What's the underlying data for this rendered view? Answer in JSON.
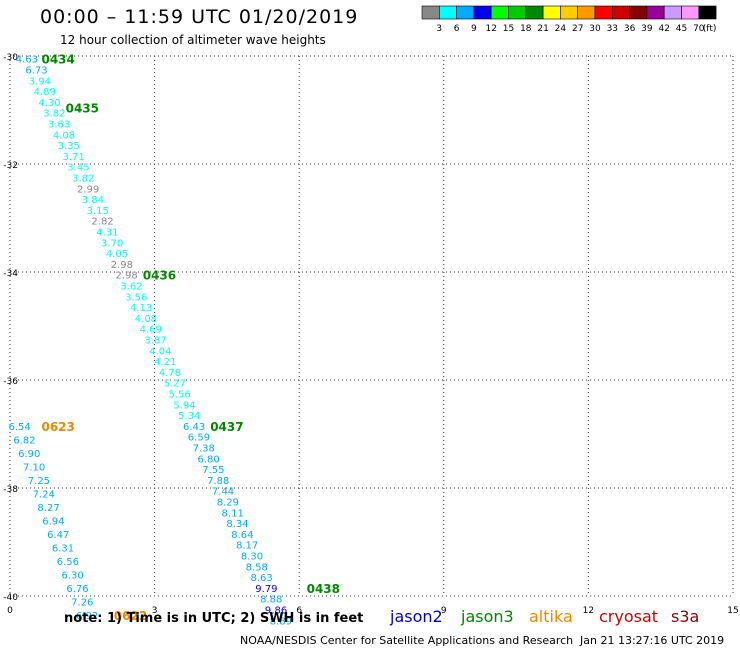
{
  "header": {
    "title": "00:00 – 11:59 UTC 01/20/2019",
    "subtitle": "12 hour collection of altimeter wave heights"
  },
  "footer": {
    "note": "note: 1) Time is in UTC; 2) SWH is in feet",
    "credit": "NOAA/NESDIS Center for Satellite Applications and Research",
    "timestamp": "Jan 21 13:27:16 UTC 2019",
    "satellites": [
      {
        "label": "jason2",
        "color": "#0000cc"
      },
      {
        "label": "jason3",
        "color": "#008800"
      },
      {
        "label": "altika",
        "color": "#ee8800"
      },
      {
        "label": "cryosat",
        "color": "#cc0000"
      },
      {
        "label": "s3a",
        "color": "#880000"
      }
    ]
  },
  "colorbar": {
    "colors": [
      "#888888",
      "#00ffff",
      "#00aaff",
      "#0000ee",
      "#00ff00",
      "#00cc00",
      "#008800",
      "#ffff00",
      "#ffcc00",
      "#ff9900",
      "#ff0000",
      "#cc0000",
      "#880000",
      "#990099",
      "#cc99ff",
      "#ff99ff",
      "#000000"
    ],
    "labels": [
      "3",
      "6",
      "9",
      "12",
      "15",
      "18",
      "21",
      "24",
      "27",
      "30",
      "33",
      "36",
      "39",
      "42",
      "45",
      "70"
    ],
    "unit": "(ft)"
  },
  "chart_data": {
    "type": "scatter",
    "xlim": [
      0,
      15
    ],
    "ylim": [
      -40,
      -30
    ],
    "x_ticks": [
      0,
      3,
      6,
      9,
      12,
      15
    ],
    "y_ticks": [
      -30,
      -32,
      -34,
      -36,
      -38,
      -40
    ],
    "grid": true,
    "tracks": [
      {
        "satellite": "jason3",
        "points": [
          {
            "x": 0.35,
            "y": -30.05,
            "v": "4.63",
            "c": "#00aaff"
          },
          {
            "x": 0.55,
            "y": -30.25,
            "v": "6.73",
            "c": "#00aaff"
          },
          {
            "x": 0.62,
            "y": -30.45,
            "v": "3.94",
            "c": "#00ffff"
          },
          {
            "x": 0.72,
            "y": -30.65,
            "v": "4.89",
            "c": "#00ffff"
          },
          {
            "x": 0.82,
            "y": -30.85,
            "v": "4.30",
            "c": "#00ffff"
          },
          {
            "x": 0.92,
            "y": -31.05,
            "v": "3.82",
            "c": "#00ffff"
          },
          {
            "x": 1.02,
            "y": -31.25,
            "v": "3.63",
            "c": "#00ffff"
          },
          {
            "x": 1.12,
            "y": -31.45,
            "v": "4.08",
            "c": "#00ffff"
          },
          {
            "x": 1.22,
            "y": -31.65,
            "v": "3.35",
            "c": "#00ffff"
          },
          {
            "x": 1.32,
            "y": -31.85,
            "v": "3.71",
            "c": "#00ffff"
          },
          {
            "x": 1.42,
            "y": -32.05,
            "v": "3.45",
            "c": "#00ffff"
          },
          {
            "x": 1.52,
            "y": -32.25,
            "v": "3.82",
            "c": "#00ffff"
          },
          {
            "x": 1.62,
            "y": -32.45,
            "v": "2.99",
            "c": "#888888"
          },
          {
            "x": 1.72,
            "y": -32.65,
            "v": "3.84",
            "c": "#00ffff"
          },
          {
            "x": 1.82,
            "y": -32.85,
            "v": "3.15",
            "c": "#00ffff"
          },
          {
            "x": 1.92,
            "y": -33.05,
            "v": "2.82",
            "c": "#888888"
          },
          {
            "x": 2.02,
            "y": -33.25,
            "v": "4.31",
            "c": "#00ffff"
          },
          {
            "x": 2.12,
            "y": -33.45,
            "v": "3.70",
            "c": "#00ffff"
          },
          {
            "x": 2.22,
            "y": -33.65,
            "v": "4.05",
            "c": "#00ffff"
          },
          {
            "x": 2.32,
            "y": -33.85,
            "v": "2.98",
            "c": "#888888"
          },
          {
            "x": 2.42,
            "y": -34.05,
            "v": "2.98",
            "c": "#888888"
          },
          {
            "x": 2.52,
            "y": -34.25,
            "v": "3.62",
            "c": "#00ffff"
          },
          {
            "x": 2.62,
            "y": -34.45,
            "v": "3.56",
            "c": "#00ffff"
          },
          {
            "x": 2.72,
            "y": -34.65,
            "v": "4.13",
            "c": "#00ffff"
          },
          {
            "x": 2.82,
            "y": -34.85,
            "v": "4.08",
            "c": "#00ffff"
          },
          {
            "x": 2.92,
            "y": -35.05,
            "v": "4.69",
            "c": "#00ffff"
          },
          {
            "x": 3.02,
            "y": -35.25,
            "v": "3.87",
            "c": "#00ffff"
          },
          {
            "x": 3.12,
            "y": -35.45,
            "v": "4.04",
            "c": "#00ffff"
          },
          {
            "x": 3.22,
            "y": -35.65,
            "v": "4.21",
            "c": "#00ffff"
          },
          {
            "x": 3.32,
            "y": -35.85,
            "v": "4.78",
            "c": "#00ffff"
          },
          {
            "x": 3.42,
            "y": -36.05,
            "v": "5.27",
            "c": "#00ffff"
          },
          {
            "x": 3.52,
            "y": -36.25,
            "v": "5.56",
            "c": "#00ffff"
          },
          {
            "x": 3.62,
            "y": -36.45,
            "v": "5.94",
            "c": "#00ffff"
          },
          {
            "x": 3.72,
            "y": -36.65,
            "v": "5.34",
            "c": "#00ffff"
          },
          {
            "x": 3.82,
            "y": -36.85,
            "v": "6.43",
            "c": "#00aaff"
          },
          {
            "x": 3.92,
            "y": -37.05,
            "v": "6.59",
            "c": "#00aaff"
          },
          {
            "x": 4.02,
            "y": -37.25,
            "v": "7.38",
            "c": "#00aaff"
          },
          {
            "x": 4.12,
            "y": -37.45,
            "v": "6.80",
            "c": "#00aaff"
          },
          {
            "x": 4.22,
            "y": -37.65,
            "v": "7.55",
            "c": "#00aaff"
          },
          {
            "x": 4.32,
            "y": -37.85,
            "v": "7.88",
            "c": "#00aaff"
          },
          {
            "x": 4.42,
            "y": -38.05,
            "v": "7.44",
            "c": "#00aaff"
          },
          {
            "x": 4.52,
            "y": -38.25,
            "v": "8.29",
            "c": "#00aaff"
          },
          {
            "x": 4.62,
            "y": -38.45,
            "v": "8.11",
            "c": "#00aaff"
          },
          {
            "x": 4.72,
            "y": -38.65,
            "v": "8.34",
            "c": "#00aaff"
          },
          {
            "x": 4.82,
            "y": -38.85,
            "v": "8.64",
            "c": "#00aaff"
          },
          {
            "x": 4.92,
            "y": -39.05,
            "v": "8.17",
            "c": "#00aaff"
          },
          {
            "x": 5.02,
            "y": -39.25,
            "v": "8.30",
            "c": "#00aaff"
          },
          {
            "x": 5.12,
            "y": -39.45,
            "v": "8.58",
            "c": "#00aaff"
          },
          {
            "x": 5.22,
            "y": -39.65,
            "v": "8.63",
            "c": "#00aaff"
          },
          {
            "x": 5.32,
            "y": -39.85,
            "v": "9.79",
            "c": "#0000ee"
          },
          {
            "x": 5.42,
            "y": -40.05,
            "v": "8.88",
            "c": "#00aaff"
          },
          {
            "x": 5.52,
            "y": -40.25,
            "v": "9.86",
            "c": "#0000ee"
          },
          {
            "x": 5.62,
            "y": -40.45,
            "v": "8.89",
            "c": "#00aaff"
          }
        ],
        "time_labels": [
          {
            "text": "0434",
            "x": 1.0,
            "y": -30.05,
            "c": "#008800"
          },
          {
            "text": "0435",
            "x": 1.5,
            "y": -30.95,
            "c": "#008800"
          },
          {
            "x": 3.1,
            "y": -34.05,
            "text": "0436",
            "c": "#008800"
          },
          {
            "x": 4.5,
            "y": -36.85,
            "text": "0437",
            "c": "#008800"
          },
          {
            "x": 6.5,
            "y": -39.85,
            "text": "0438",
            "c": "#008800"
          }
        ]
      },
      {
        "satellite": "altika",
        "points": [
          {
            "x": 0.2,
            "y": -36.85,
            "v": "6.54",
            "c": "#00aaff"
          },
          {
            "x": 0.3,
            "y": -37.1,
            "v": "6.82",
            "c": "#00aaff"
          },
          {
            "x": 0.4,
            "y": -37.35,
            "v": "6.90",
            "c": "#00aaff"
          },
          {
            "x": 0.5,
            "y": -37.6,
            "v": "7.10",
            "c": "#00aaff"
          },
          {
            "x": 0.6,
            "y": -37.85,
            "v": "7.25",
            "c": "#00aaff"
          },
          {
            "x": 0.7,
            "y": -38.1,
            "v": "7.24",
            "c": "#00aaff"
          },
          {
            "x": 0.8,
            "y": -38.35,
            "v": "8.27",
            "c": "#00aaff"
          },
          {
            "x": 0.9,
            "y": -38.6,
            "v": "6.94",
            "c": "#00aaff"
          },
          {
            "x": 1.0,
            "y": -38.85,
            "v": "6.47",
            "c": "#00aaff"
          },
          {
            "x": 1.1,
            "y": -39.1,
            "v": "6.31",
            "c": "#00aaff"
          },
          {
            "x": 1.2,
            "y": -39.35,
            "v": "6.56",
            "c": "#00aaff"
          },
          {
            "x": 1.3,
            "y": -39.6,
            "v": "6.30",
            "c": "#00aaff"
          },
          {
            "x": 1.4,
            "y": -39.85,
            "v": "6.76",
            "c": "#00aaff"
          },
          {
            "x": 1.5,
            "y": -40.1,
            "v": "7.26",
            "c": "#00aaff"
          },
          {
            "x": 1.6,
            "y": -40.35,
            "v": "6.92",
            "c": "#00aaff"
          }
        ],
        "time_labels": [
          {
            "text": "0623",
            "x": 1.0,
            "y": -36.85,
            "c": "#ee8800"
          },
          {
            "text": "0622",
            "x": 2.5,
            "y": -40.35,
            "c": "#ee8800"
          }
        ]
      }
    ]
  }
}
